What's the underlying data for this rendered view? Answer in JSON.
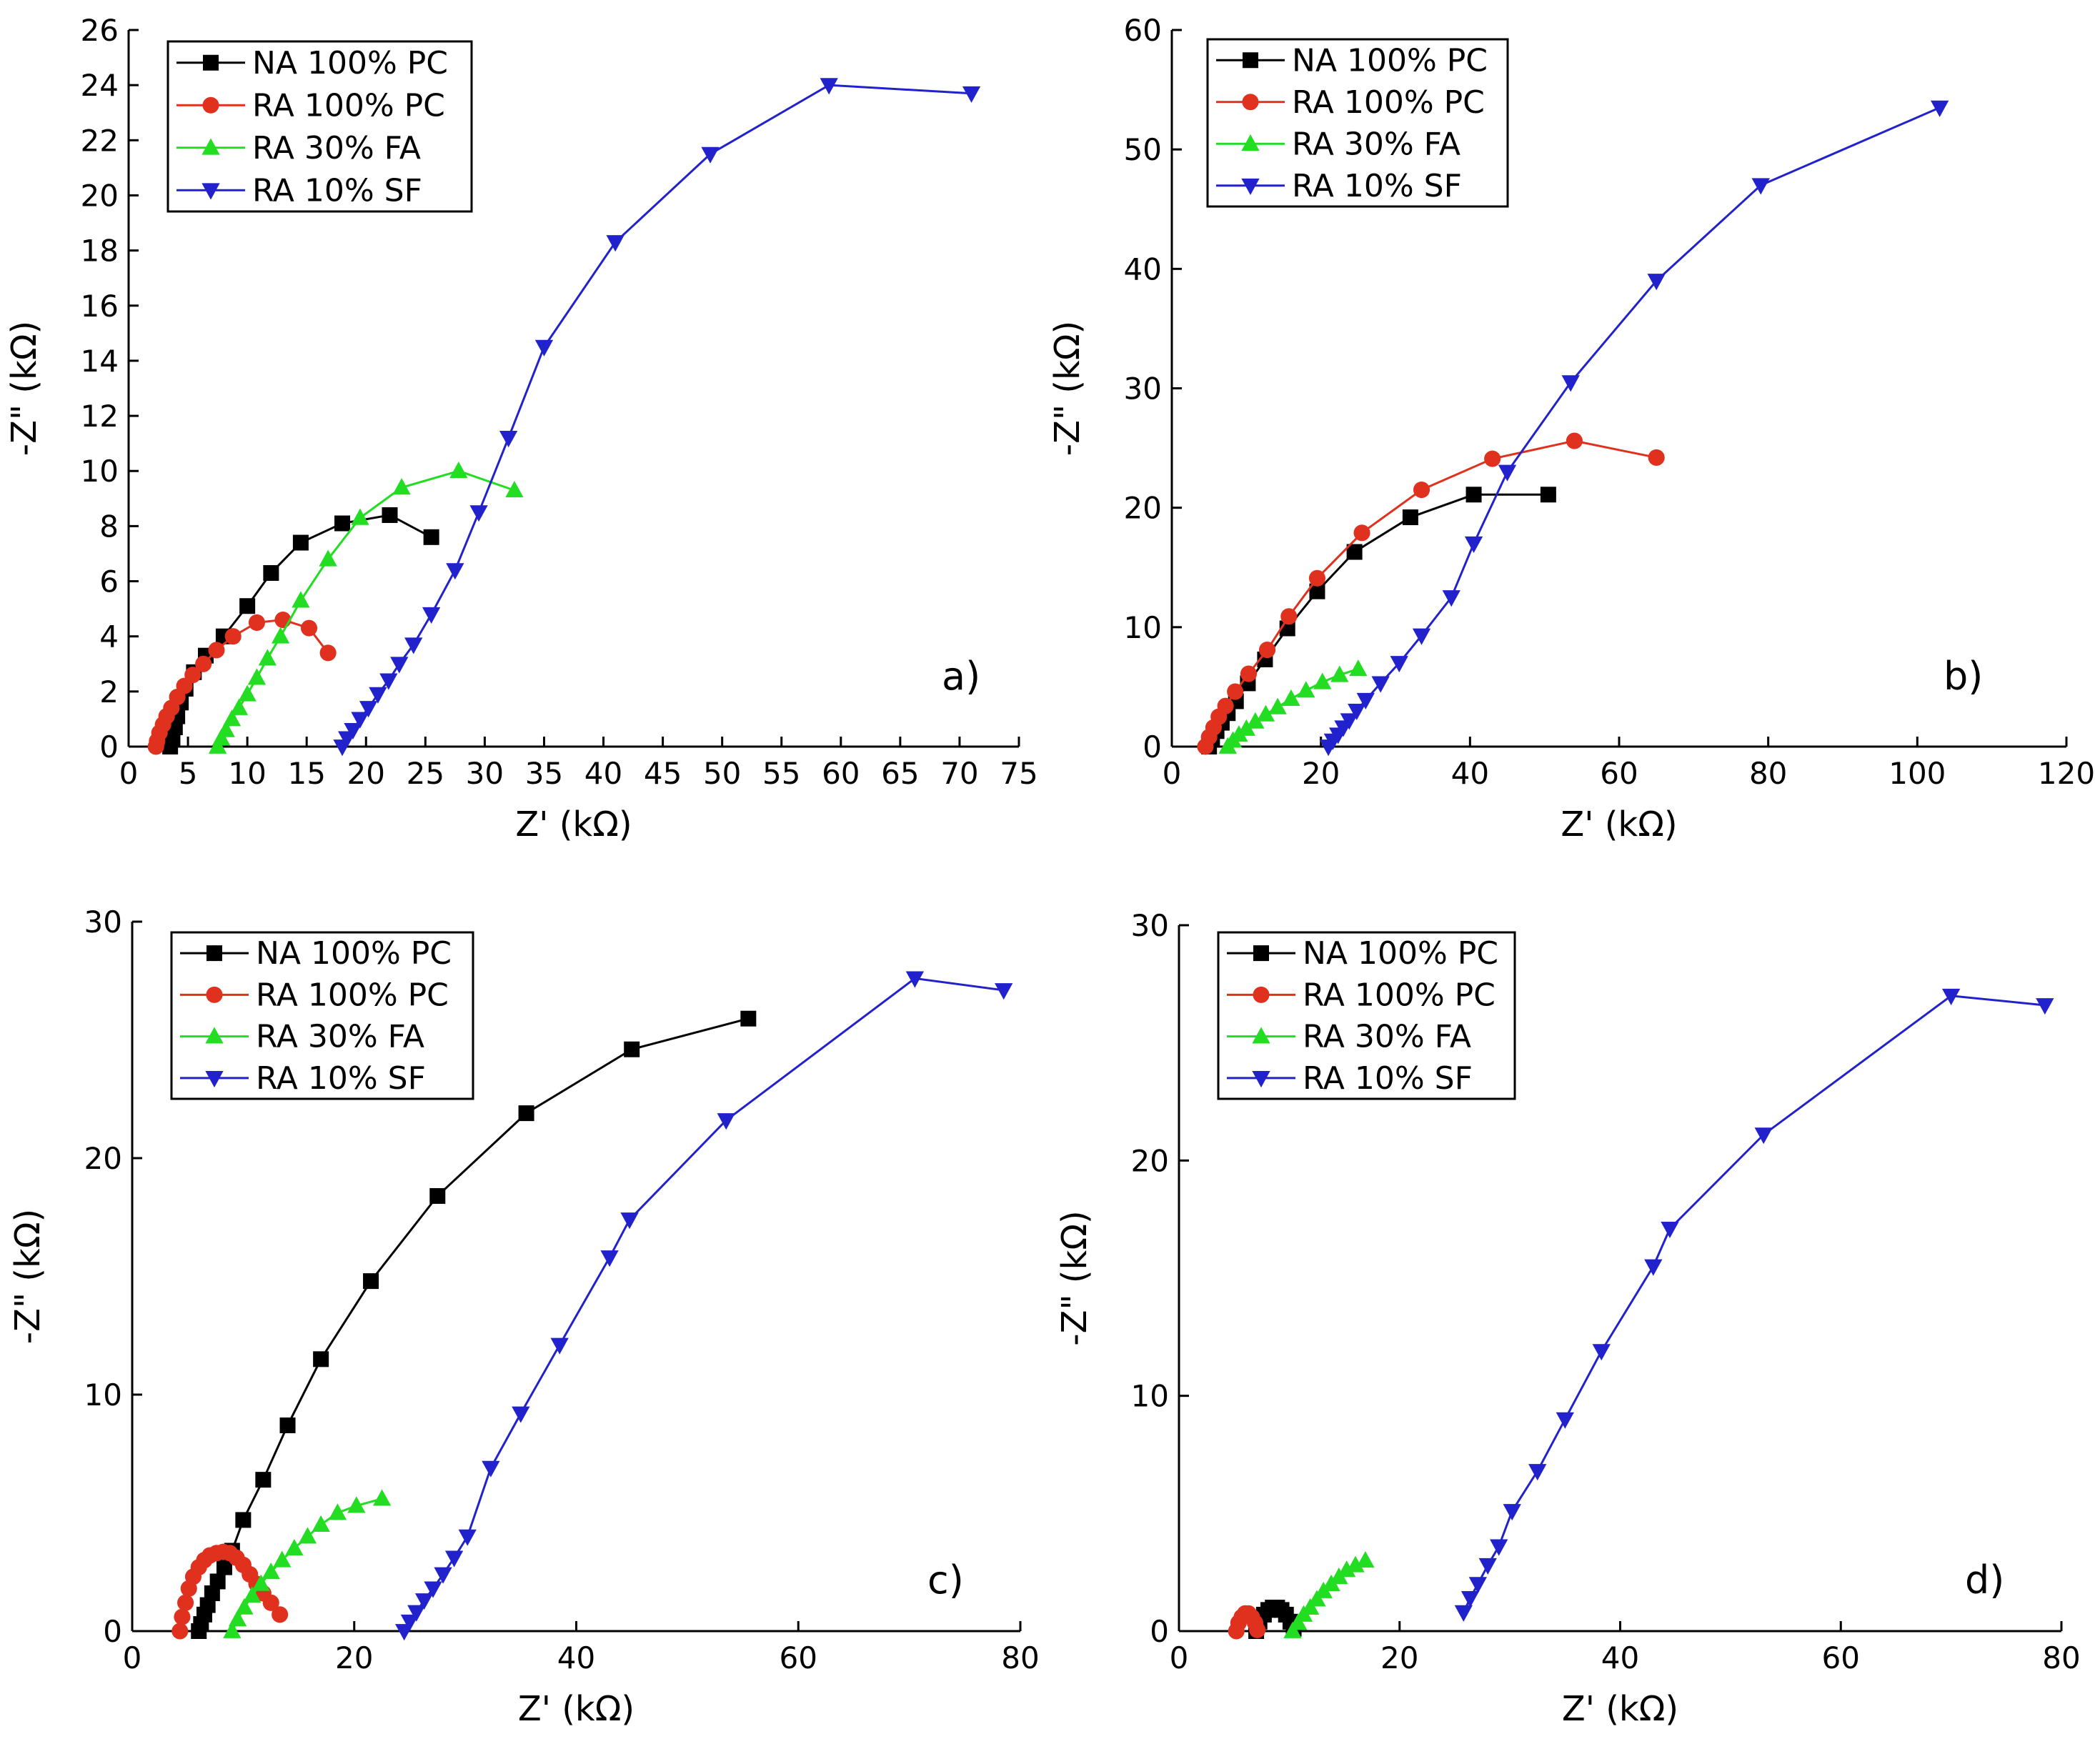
{
  "chart_data": [
    {
      "type": "scatter",
      "panel_label": "a)",
      "xlabel": "Z' (kΩ)",
      "ylabel": "-Z\" (kΩ)",
      "xlim": [
        0,
        75
      ],
      "ylim": [
        0,
        26
      ],
      "xticks": [
        0,
        5,
        10,
        15,
        20,
        25,
        30,
        35,
        40,
        45,
        50,
        55,
        60,
        65,
        70,
        75
      ],
      "yticks": [
        0,
        2,
        4,
        6,
        8,
        10,
        12,
        14,
        16,
        18,
        20,
        22,
        24,
        26
      ],
      "legend_position": "top-left",
      "series": [
        {
          "name": "NA 100% PC",
          "color": "#000000",
          "marker": "square",
          "x": [
            3.5,
            3.7,
            3.9,
            4.1,
            4.4,
            4.8,
            5.5,
            6.5,
            8.0,
            10.0,
            12.0,
            14.5,
            18.0,
            22.0,
            25.5
          ],
          "y": [
            0,
            0.3,
            0.7,
            1.1,
            1.6,
            2.1,
            2.7,
            3.3,
            4.0,
            5.1,
            6.3,
            7.4,
            8.1,
            8.4,
            7.6
          ]
        },
        {
          "name": "RA 100% PC",
          "color": "#e0301e",
          "marker": "circle",
          "x": [
            2.3,
            2.4,
            2.6,
            2.9,
            3.2,
            3.6,
            4.1,
            4.7,
            5.4,
            6.3,
            7.4,
            8.8,
            10.8,
            13.0,
            15.2,
            16.8
          ],
          "y": [
            0,
            0.2,
            0.5,
            0.8,
            1.1,
            1.4,
            1.8,
            2.2,
            2.6,
            3.0,
            3.5,
            4.0,
            4.5,
            4.6,
            4.3,
            3.4
          ]
        },
        {
          "name": "RA 30% FA",
          "color": "#22dd22",
          "marker": "triangle-up",
          "x": [
            7.5,
            7.8,
            8.2,
            8.7,
            9.3,
            10.0,
            10.8,
            11.7,
            12.8,
            14.5,
            16.8,
            19.5,
            23.0,
            27.8,
            32.5
          ],
          "y": [
            0,
            0.3,
            0.6,
            1.0,
            1.4,
            1.9,
            2.5,
            3.2,
            4.0,
            5.3,
            6.8,
            8.3,
            9.4,
            10.0,
            9.3
          ]
        },
        {
          "name": "RA 10% SF",
          "color": "#2222cc",
          "marker": "triangle-down",
          "x": [
            18.0,
            18.4,
            18.9,
            19.5,
            20.2,
            21.0,
            21.9,
            22.8,
            24.0,
            25.5,
            27.5,
            29.5,
            32.0,
            35.0,
            41.0,
            49.0,
            59.0,
            71.0
          ],
          "y": [
            0,
            0.3,
            0.6,
            1.0,
            1.4,
            1.9,
            2.4,
            3.0,
            3.7,
            4.8,
            6.4,
            8.5,
            11.2,
            14.5,
            18.3,
            21.5,
            24.0,
            23.7
          ]
        }
      ]
    },
    {
      "type": "scatter",
      "panel_label": "b)",
      "xlabel": "Z' (kΩ)",
      "ylabel": "-Z\" (kΩ)",
      "xlim": [
        0,
        120
      ],
      "ylim": [
        0,
        60
      ],
      "xticks": [
        0,
        20,
        40,
        60,
        80,
        100,
        120
      ],
      "yticks": [
        0,
        10,
        20,
        30,
        40,
        50,
        60
      ],
      "legend_position": "top-left",
      "series": [
        {
          "name": "NA 100% PC",
          "color": "#000000",
          "marker": "square",
          "x": [
            5.0,
            5.4,
            6.0,
            6.7,
            7.5,
            8.6,
            10.2,
            12.5,
            15.5,
            19.5,
            24.5,
            32.0,
            40.5,
            50.5
          ],
          "y": [
            0,
            0.6,
            1.3,
            2.0,
            2.8,
            3.8,
            5.3,
            7.3,
            9.9,
            13.0,
            16.3,
            19.2,
            21.1,
            21.1
          ]
        },
        {
          "name": "RA 100% PC",
          "color": "#e0301e",
          "marker": "circle",
          "x": [
            4.5,
            5.0,
            5.6,
            6.3,
            7.2,
            8.5,
            10.3,
            12.8,
            15.7,
            19.5,
            25.5,
            33.5,
            43.0,
            54.0,
            65.0
          ],
          "y": [
            0,
            0.8,
            1.6,
            2.5,
            3.4,
            4.6,
            6.1,
            8.1,
            10.9,
            14.1,
            17.9,
            21.5,
            24.1,
            25.6,
            24.2
          ]
        },
        {
          "name": "RA 30% FA",
          "color": "#22dd22",
          "marker": "triangle-up",
          "x": [
            7.5,
            8.2,
            9.0,
            10.0,
            11.2,
            12.6,
            14.2,
            16.0,
            18.0,
            20.2,
            22.5,
            25.0
          ],
          "y": [
            0,
            0.5,
            1.0,
            1.5,
            2.1,
            2.7,
            3.3,
            4.0,
            4.7,
            5.4,
            6.0,
            6.5
          ]
        },
        {
          "name": "RA 10% SF",
          "color": "#2222cc",
          "marker": "triangle-down",
          "x": [
            21.0,
            21.6,
            22.3,
            23.0,
            23.8,
            24.8,
            26.0,
            28.0,
            30.5,
            33.5,
            37.5,
            40.5,
            45.0,
            53.5,
            65.0,
            79.0,
            103.0
          ],
          "y": [
            0,
            0.5,
            1.0,
            1.6,
            2.2,
            3.0,
            3.9,
            5.3,
            7.0,
            9.3,
            12.5,
            17.0,
            23.0,
            30.5,
            39.0,
            47.0,
            53.5
          ]
        }
      ]
    },
    {
      "type": "scatter",
      "panel_label": "c)",
      "xlabel": "Z' (kΩ)",
      "ylabel": "-Z\" (kΩ)",
      "xlim": [
        0,
        80
      ],
      "ylim": [
        0,
        30
      ],
      "xticks": [
        0,
        20,
        40,
        60,
        80
      ],
      "yticks": [
        0,
        10,
        20,
        30
      ],
      "legend_position": "top-left",
      "series": [
        {
          "name": "NA 100% PC",
          "color": "#000000",
          "marker": "square",
          "x": [
            6.0,
            6.2,
            6.5,
            6.8,
            7.2,
            7.7,
            8.3,
            9.0,
            10.0,
            11.8,
            14.0,
            17.0,
            21.5,
            27.5,
            35.5,
            45.0,
            55.5
          ],
          "y": [
            0,
            0.3,
            0.7,
            1.1,
            1.6,
            2.1,
            2.7,
            3.4,
            4.7,
            6.4,
            8.7,
            11.5,
            14.8,
            18.4,
            21.9,
            24.6,
            25.9
          ]
        },
        {
          "name": "RA 100% PC",
          "color": "#e0301e",
          "marker": "circle",
          "x": [
            4.3,
            4.5,
            4.8,
            5.1,
            5.5,
            6.0,
            6.5,
            7.0,
            7.6,
            8.2,
            8.8,
            9.4,
            10.0,
            10.6,
            11.2,
            11.8,
            12.5,
            13.3
          ],
          "y": [
            0,
            0.6,
            1.2,
            1.8,
            2.3,
            2.7,
            3.0,
            3.2,
            3.3,
            3.35,
            3.3,
            3.1,
            2.8,
            2.4,
            2.0,
            1.6,
            1.2,
            0.7
          ]
        },
        {
          "name": "RA 30% FA",
          "color": "#22dd22",
          "marker": "triangle-up",
          "x": [
            9.0,
            9.5,
            10.1,
            10.8,
            11.6,
            12.5,
            13.5,
            14.6,
            15.8,
            17.0,
            18.5,
            20.2,
            22.5
          ],
          "y": [
            0,
            0.5,
            1.0,
            1.5,
            2.0,
            2.5,
            3.0,
            3.5,
            4.0,
            4.5,
            5.0,
            5.3,
            5.6
          ]
        },
        {
          "name": "RA 10% SF",
          "color": "#2222cc",
          "marker": "triangle-down",
          "x": [
            24.5,
            25.0,
            25.6,
            26.3,
            27.1,
            28.0,
            29.0,
            30.2,
            32.3,
            35.0,
            38.5,
            43.0,
            44.8,
            53.5,
            70.5,
            78.5
          ],
          "y": [
            0,
            0.4,
            0.8,
            1.3,
            1.8,
            2.4,
            3.1,
            4.0,
            6.9,
            9.2,
            12.1,
            15.8,
            17.4,
            21.6,
            27.6,
            27.1
          ]
        }
      ]
    },
    {
      "type": "scatter",
      "panel_label": "d)",
      "xlabel": "Z' (kΩ)",
      "ylabel": "-Z\" (kΩ)",
      "xlim": [
        0,
        80
      ],
      "ylim": [
        0,
        30
      ],
      "xticks": [
        0,
        20,
        40,
        60,
        80
      ],
      "yticks": [
        0,
        10,
        20,
        30
      ],
      "legend_position": "top-left",
      "series": [
        {
          "name": "NA 100% PC",
          "color": "#000000",
          "marker": "square",
          "x": [
            7.0,
            7.3,
            7.7,
            8.1,
            8.5,
            8.9,
            9.3,
            9.7,
            10.1,
            10.4
          ],
          "y": [
            0,
            0.4,
            0.7,
            0.9,
            1.0,
            1.0,
            0.9,
            0.7,
            0.4,
            0.1
          ]
        },
        {
          "name": "RA 100% PC",
          "color": "#e0301e",
          "marker": "circle",
          "x": [
            5.2,
            5.4,
            5.7,
            6.0,
            6.3,
            6.6,
            6.9,
            7.1
          ],
          "y": [
            0,
            0.35,
            0.6,
            0.75,
            0.75,
            0.6,
            0.35,
            0.05
          ]
        },
        {
          "name": "RA 30% FA",
          "color": "#22dd22",
          "marker": "triangle-up",
          "x": [
            10.3,
            10.8,
            11.3,
            11.9,
            12.5,
            13.1,
            13.8,
            14.5,
            15.2,
            16.0,
            16.9
          ],
          "y": [
            0,
            0.35,
            0.7,
            1.0,
            1.35,
            1.7,
            2.0,
            2.3,
            2.6,
            2.8,
            3.0
          ]
        },
        {
          "name": "RA 10% SF",
          "color": "#2222cc",
          "marker": "triangle-down",
          "x": [
            25.8,
            26.4,
            27.1,
            28.0,
            29.0,
            30.2,
            32.5,
            35.0,
            38.3,
            43.0,
            44.5,
            53.0,
            70.0,
            78.5
          ],
          "y": [
            0.8,
            1.4,
            2.0,
            2.8,
            3.6,
            5.1,
            6.8,
            9.0,
            11.9,
            15.5,
            17.1,
            21.1,
            27.0,
            26.6
          ]
        }
      ]
    }
  ]
}
